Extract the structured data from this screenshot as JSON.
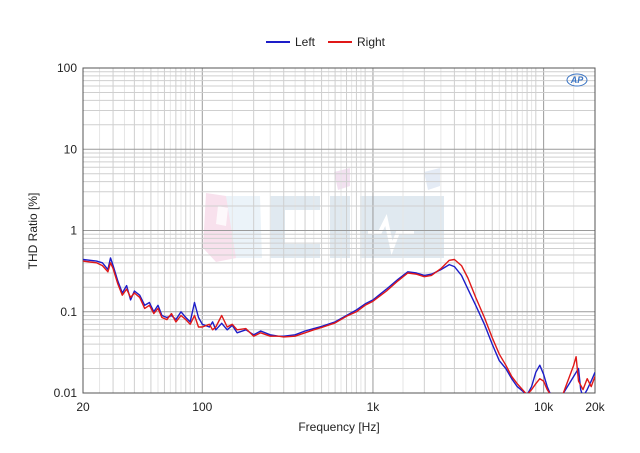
{
  "chart_data": {
    "type": "line",
    "xlabel": "Frequency [Hz]",
    "ylabel": "THD Ratio [%]",
    "x_scale": "log",
    "y_scale": "log",
    "xlim": [
      20,
      20000
    ],
    "ylim": [
      0.01,
      100
    ],
    "x_ticks": [
      {
        "value": 20,
        "label": "20"
      },
      {
        "value": 100,
        "label": "100"
      },
      {
        "value": 1000,
        "label": "1k"
      },
      {
        "value": 10000,
        "label": "10k"
      },
      {
        "value": 20000,
        "label": "20k"
      }
    ],
    "y_ticks": [
      {
        "value": 100,
        "label": "100"
      },
      {
        "value": 10,
        "label": "10"
      },
      {
        "value": 1,
        "label": "1"
      },
      {
        "value": 0.1,
        "label": "0.1"
      },
      {
        "value": 0.01,
        "label": "0.01"
      }
    ],
    "grid": true,
    "legend_position": "top-center",
    "watermark_text": "AP",
    "series": [
      {
        "name": "Left",
        "color": "#1d1dc8",
        "points": [
          [
            20,
            0.44
          ],
          [
            22,
            0.43
          ],
          [
            24,
            0.42
          ],
          [
            26,
            0.4
          ],
          [
            28,
            0.33
          ],
          [
            29,
            0.46
          ],
          [
            30,
            0.37
          ],
          [
            32,
            0.24
          ],
          [
            34,
            0.17
          ],
          [
            36,
            0.21
          ],
          [
            38,
            0.14
          ],
          [
            40,
            0.18
          ],
          [
            43,
            0.16
          ],
          [
            46,
            0.12
          ],
          [
            49,
            0.13
          ],
          [
            52,
            0.1
          ],
          [
            55,
            0.12
          ],
          [
            58,
            0.09
          ],
          [
            62,
            0.085
          ],
          [
            66,
            0.09
          ],
          [
            70,
            0.08
          ],
          [
            75,
            0.1
          ],
          [
            80,
            0.085
          ],
          [
            85,
            0.075
          ],
          [
            90,
            0.13
          ],
          [
            95,
            0.085
          ],
          [
            100,
            0.07
          ],
          [
            110,
            0.065
          ],
          [
            115,
            0.075
          ],
          [
            120,
            0.06
          ],
          [
            130,
            0.072
          ],
          [
            140,
            0.06
          ],
          [
            150,
            0.068
          ],
          [
            160,
            0.055
          ],
          [
            180,
            0.06
          ],
          [
            200,
            0.052
          ],
          [
            220,
            0.058
          ],
          [
            250,
            0.052
          ],
          [
            280,
            0.05
          ],
          [
            300,
            0.05
          ],
          [
            350,
            0.052
          ],
          [
            400,
            0.058
          ],
          [
            450,
            0.062
          ],
          [
            500,
            0.066
          ],
          [
            600,
            0.075
          ],
          [
            700,
            0.09
          ],
          [
            800,
            0.105
          ],
          [
            900,
            0.125
          ],
          [
            1000,
            0.14
          ],
          [
            1200,
            0.19
          ],
          [
            1400,
            0.25
          ],
          [
            1600,
            0.31
          ],
          [
            1800,
            0.3
          ],
          [
            2000,
            0.28
          ],
          [
            2200,
            0.29
          ],
          [
            2500,
            0.33
          ],
          [
            2800,
            0.38
          ],
          [
            3000,
            0.36
          ],
          [
            3300,
            0.28
          ],
          [
            3600,
            0.19
          ],
          [
            4000,
            0.12
          ],
          [
            4500,
            0.07
          ],
          [
            5000,
            0.04
          ],
          [
            5500,
            0.025
          ],
          [
            6000,
            0.02
          ],
          [
            6500,
            0.015
          ],
          [
            7000,
            0.012
          ],
          [
            8000,
            0.0095
          ],
          [
            8500,
            0.012
          ],
          [
            9000,
            0.018
          ],
          [
            9500,
            0.022
          ],
          [
            10000,
            0.017
          ],
          [
            10500,
            0.012
          ],
          [
            11000,
            0.0095
          ],
          [
            13000,
            0.0098
          ],
          [
            15000,
            0.016
          ],
          [
            16000,
            0.02
          ],
          [
            16500,
            0.011
          ],
          [
            17000,
            0.009
          ],
          [
            18000,
            0.011
          ],
          [
            19000,
            0.014
          ],
          [
            20000,
            0.018
          ]
        ]
      },
      {
        "name": "Right",
        "color": "#e01818",
        "points": [
          [
            20,
            0.42
          ],
          [
            22,
            0.41
          ],
          [
            24,
            0.4
          ],
          [
            26,
            0.37
          ],
          [
            28,
            0.31
          ],
          [
            29,
            0.4
          ],
          [
            30,
            0.34
          ],
          [
            32,
            0.22
          ],
          [
            34,
            0.16
          ],
          [
            36,
            0.19
          ],
          [
            38,
            0.15
          ],
          [
            40,
            0.17
          ],
          [
            43,
            0.15
          ],
          [
            46,
            0.11
          ],
          [
            49,
            0.12
          ],
          [
            52,
            0.095
          ],
          [
            55,
            0.11
          ],
          [
            58,
            0.085
          ],
          [
            62,
            0.08
          ],
          [
            66,
            0.095
          ],
          [
            70,
            0.075
          ],
          [
            75,
            0.09
          ],
          [
            80,
            0.08
          ],
          [
            85,
            0.07
          ],
          [
            90,
            0.09
          ],
          [
            95,
            0.065
          ],
          [
            100,
            0.065
          ],
          [
            110,
            0.07
          ],
          [
            115,
            0.06
          ],
          [
            120,
            0.065
          ],
          [
            130,
            0.09
          ],
          [
            140,
            0.065
          ],
          [
            150,
            0.07
          ],
          [
            160,
            0.06
          ],
          [
            180,
            0.062
          ],
          [
            200,
            0.05
          ],
          [
            220,
            0.055
          ],
          [
            250,
            0.05
          ],
          [
            280,
            0.05
          ],
          [
            300,
            0.049
          ],
          [
            350,
            0.05
          ],
          [
            400,
            0.055
          ],
          [
            450,
            0.06
          ],
          [
            500,
            0.064
          ],
          [
            600,
            0.073
          ],
          [
            700,
            0.088
          ],
          [
            800,
            0.1
          ],
          [
            900,
            0.12
          ],
          [
            1000,
            0.135
          ],
          [
            1200,
            0.18
          ],
          [
            1400,
            0.24
          ],
          [
            1600,
            0.3
          ],
          [
            1800,
            0.29
          ],
          [
            2000,
            0.27
          ],
          [
            2200,
            0.28
          ],
          [
            2500,
            0.34
          ],
          [
            2800,
            0.43
          ],
          [
            3000,
            0.44
          ],
          [
            3300,
            0.37
          ],
          [
            3600,
            0.26
          ],
          [
            4000,
            0.15
          ],
          [
            4500,
            0.085
          ],
          [
            5000,
            0.048
          ],
          [
            5500,
            0.03
          ],
          [
            6000,
            0.022
          ],
          [
            6500,
            0.016
          ],
          [
            7000,
            0.013
          ],
          [
            8000,
            0.0095
          ],
          [
            8500,
            0.011
          ],
          [
            9000,
            0.013
          ],
          [
            9500,
            0.015
          ],
          [
            10000,
            0.014
          ],
          [
            10500,
            0.011
          ],
          [
            11000,
            0.0095
          ],
          [
            13000,
            0.0098
          ],
          [
            15000,
            0.022
          ],
          [
            15500,
            0.028
          ],
          [
            16000,
            0.014
          ],
          [
            17000,
            0.011
          ],
          [
            18000,
            0.015
          ],
          [
            19000,
            0.012
          ],
          [
            20000,
            0.016
          ]
        ]
      }
    ]
  }
}
